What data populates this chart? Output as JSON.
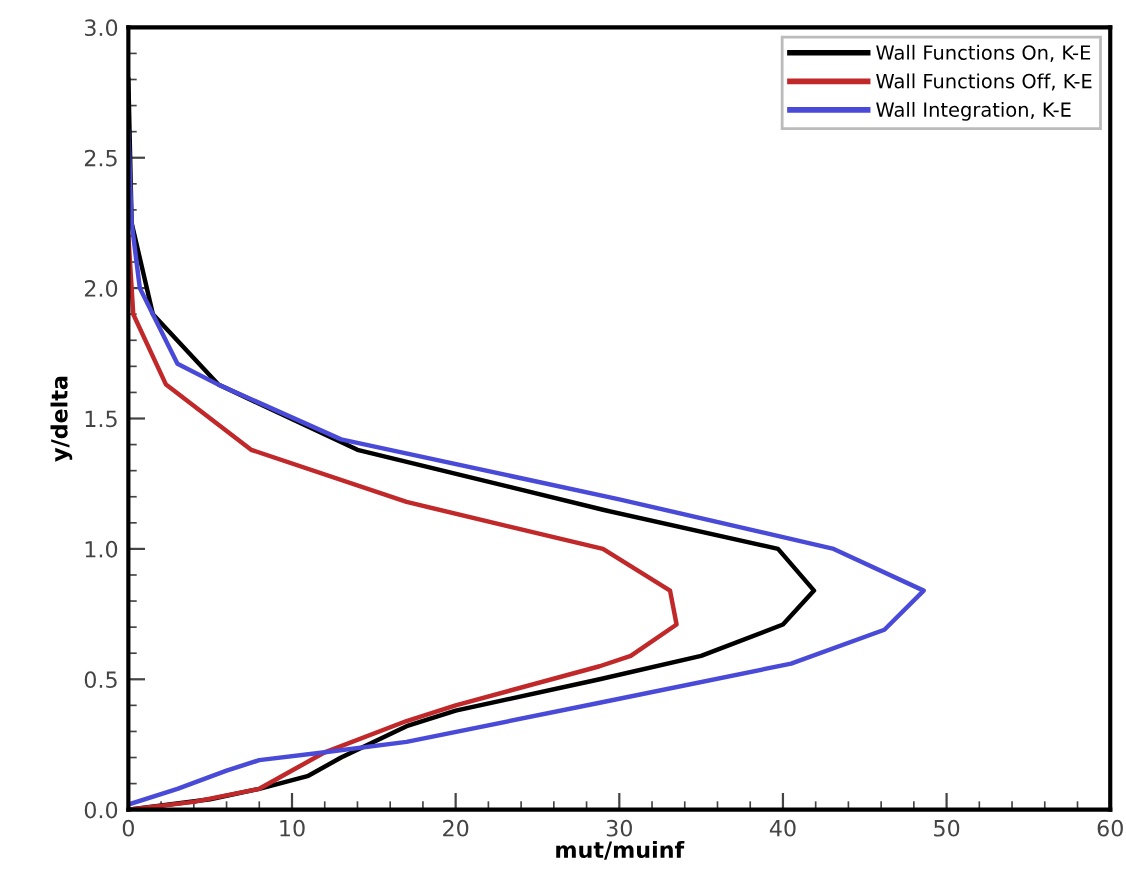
{
  "chart_data": {
    "type": "line",
    "xlabel": "mut/muinf",
    "ylabel": "y/delta",
    "xlim": [
      0,
      60
    ],
    "ylim": [
      0,
      3.0
    ],
    "xticks": [
      0,
      10,
      20,
      30,
      40,
      50,
      60
    ],
    "yticks": [
      {
        "value": 0,
        "label": "0.0"
      },
      0.5,
      {
        "value": 1,
        "label": "1.0"
      },
      1.5,
      {
        "value": 2,
        "label": "2.0"
      },
      2.5,
      {
        "value": 3,
        "label": "3.0"
      }
    ],
    "grid": false,
    "legend": "top right",
    "marker": "none",
    "line_style": "solid",
    "series": [
      {
        "name": "Wall Functions On, K-E",
        "color": "#000000",
        "x": [
          0,
          0.2,
          1.5,
          5.5,
          14,
          29,
          39.7,
          41.9,
          40.0,
          35,
          28.8,
          20,
          17,
          13,
          11,
          8,
          5,
          0
        ],
        "values": [
          2.8,
          2.25,
          1.9,
          1.63,
          1.38,
          1.15,
          1.0,
          0.84,
          0.71,
          0.59,
          0.5,
          0.38,
          0.32,
          0.2,
          0.13,
          0.08,
          0.04,
          0.0
        ]
      },
      {
        "name": "Wall Functions Off, K-E",
        "color": "#c0282a",
        "x": [
          0,
          0.3,
          2.3,
          7.5,
          17,
          29.0,
          33.1,
          33.5,
          30.7,
          28.8,
          20,
          17,
          12,
          10,
          8,
          4,
          0
        ],
        "values": [
          2.2,
          1.9,
          1.63,
          1.38,
          1.18,
          1.0,
          0.84,
          0.71,
          0.59,
          0.55,
          0.4,
          0.34,
          0.22,
          0.15,
          0.08,
          0.03,
          0.0
        ]
      },
      {
        "name": "Wall Integration, K-E",
        "color": "#4a4ad8",
        "x": [
          0,
          0.2,
          0.7,
          3,
          5.5,
          13,
          30,
          43.1,
          48.6,
          46.2,
          40.5,
          28.8,
          17,
          12,
          8,
          6,
          3,
          0
        ],
        "values": [
          2.6,
          2.25,
          2.0,
          1.71,
          1.63,
          1.42,
          1.19,
          1.0,
          0.84,
          0.69,
          0.56,
          0.41,
          0.26,
          0.22,
          0.19,
          0.15,
          0.08,
          0.02
        ]
      }
    ]
  }
}
